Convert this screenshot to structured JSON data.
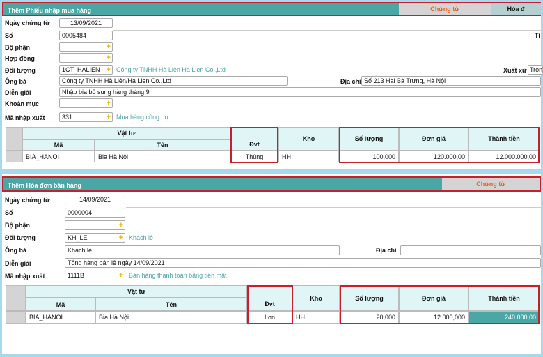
{
  "purchase": {
    "title": "Thêm Phiếu nhập mua hàng",
    "tabs": [
      "Chứng từ",
      "Hóa đ"
    ],
    "fields": {
      "ngay_label": "Ngày chứng từ",
      "ngay": "13/09/2021",
      "so_label": "Số",
      "so": "0005484",
      "bophan_label": "Bộ phận",
      "bophan": "",
      "hopdong_label": "Hợp đồng",
      "hopdong": "",
      "doituong_label": "Đối tượng",
      "doituong": "1CT_HALIEN",
      "doituong_name": "Công ty TNHH Hà Liên Ha Lien Co.,Ltd",
      "ongba_label": "Ông bà",
      "ongba": "Công ty TNHH Hà Liên/Ha Lien Co.,Ltd",
      "diachi_label": "Địa chỉ",
      "diachi": "Số 213 Hai Bà Trưng, Hà Nội",
      "diengiai_label": "Diễn giải",
      "diengiai": "Nhập bia bổ sung hàng tháng 9",
      "khoanmuc_label": "Khoản mục",
      "khoanmuc": "",
      "manx_label": "Mã nhập xuất",
      "manx": "331",
      "manx_name": "Mua hàng công nợ",
      "tien_label": "Ti",
      "xuatxu_label": "Xuất xứ",
      "xuatxu": "Tron"
    },
    "table": {
      "group": "Vật tư",
      "headers": [
        "Mã",
        "Tên",
        "Đvt",
        "Kho",
        "Số lượng",
        "Đơn giá",
        "Thành tiền"
      ],
      "rows": [
        [
          "BIA_HANOI",
          "Bia Hà Nội",
          "Thùng",
          "HH",
          "100,000",
          "120.000,00",
          "12.000.000,00"
        ]
      ]
    }
  },
  "sales": {
    "title": "Thêm Hóa đơn bán hàng",
    "tabs": [
      "Chứng từ"
    ],
    "fields": {
      "ngay_label": "Ngày chứng từ",
      "ngay": "14/09/2021",
      "so_label": "Số",
      "so": "0000004",
      "bophan_label": "Bộ phận",
      "bophan": "",
      "doituong_label": "Đối tượng",
      "doituong": "KH_LE",
      "doituong_name": "Khách lẻ",
      "ongba_label": "Ông bà",
      "ongba": "Khách lẻ",
      "diachi_label": "Địa chỉ",
      "diachi": "",
      "diengiai_label": "Diễn giải",
      "diengiai": "Tổng hàng bán lẻ ngày 14/09/2021",
      "manx_label": "Mã nhập xuất",
      "manx": "1111B",
      "manx_name": "Bán hàng thanh toán bằng tiền mặt"
    },
    "table": {
      "group": "Vật tư",
      "headers": [
        "Mã",
        "Tên",
        "Đvt",
        "Kho",
        "Số lượng",
        "Đơn giá",
        "Thành tiền"
      ],
      "rows": [
        [
          "BIA_HANOI",
          "Bia Hà Nội",
          "Lon",
          "HH",
          "20,000",
          "12.000,000",
          "240.000,00"
        ]
      ]
    }
  },
  "colors": {
    "header": "#4aa7a5",
    "highlight": "#c8202a",
    "tab_text": "#f06020"
  }
}
